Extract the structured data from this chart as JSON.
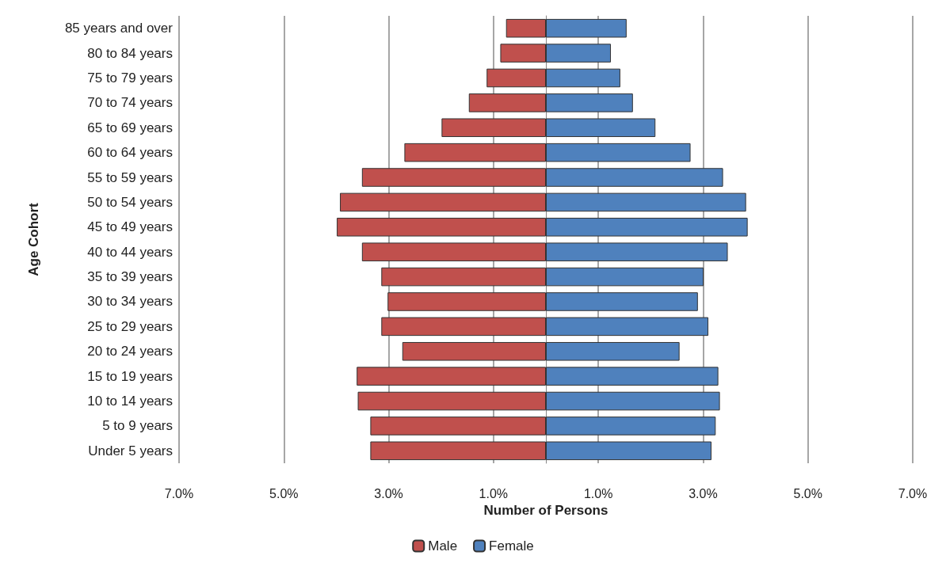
{
  "chart_data": {
    "type": "bar",
    "orientation": "horizontal",
    "xlabel": "Number of Persons",
    "ylabel": "Age Cohort",
    "categories": [
      "85 years and over",
      "80 to 84 years",
      "75 to 79 years",
      "70 to 74 years",
      "65 to 69 years",
      "60 to 64 years",
      "55 to 59 years",
      "50 to 54 years",
      "45 to 49 years",
      "40 to 44 years",
      "35 to 39 years",
      "30 to 34 years",
      "25 to 29 years",
      "20 to 24 years",
      "15 to 19 years",
      "10 to 14 years",
      "5 to 9 years",
      "Under 5 years"
    ],
    "series": [
      {
        "name": "Male",
        "color": "#c0504d",
        "values": [
          -0.76,
          -0.87,
          -1.13,
          -1.47,
          -1.99,
          -2.7,
          -3.51,
          -3.93,
          -3.99,
          -3.51,
          -3.14,
          -3.02,
          -3.14,
          -2.74,
          -3.61,
          -3.59,
          -3.35,
          -3.35
        ]
      },
      {
        "name": "Female",
        "color": "#4f81bd",
        "values": [
          1.54,
          1.24,
          1.42,
          1.66,
          2.09,
          2.76,
          3.38,
          3.82,
          3.85,
          3.47,
          3.01,
          2.9,
          3.1,
          2.55,
          3.29,
          3.32,
          3.24,
          3.16
        ]
      }
    ],
    "xlim": [
      -7,
      7
    ],
    "xticks": [
      {
        "value": -7,
        "label": "7.0%"
      },
      {
        "value": -5,
        "label": "5.0%"
      },
      {
        "value": -3,
        "label": "3.0%"
      },
      {
        "value": -1,
        "label": "1.0%"
      },
      {
        "value": 1,
        "label": "1.0%"
      },
      {
        "value": 3,
        "label": "3.0%"
      },
      {
        "value": 5,
        "label": "5.0%"
      },
      {
        "value": 7,
        "label": "7.0%"
      }
    ],
    "grid": "x",
    "legend": "bottom",
    "stacked": true
  }
}
